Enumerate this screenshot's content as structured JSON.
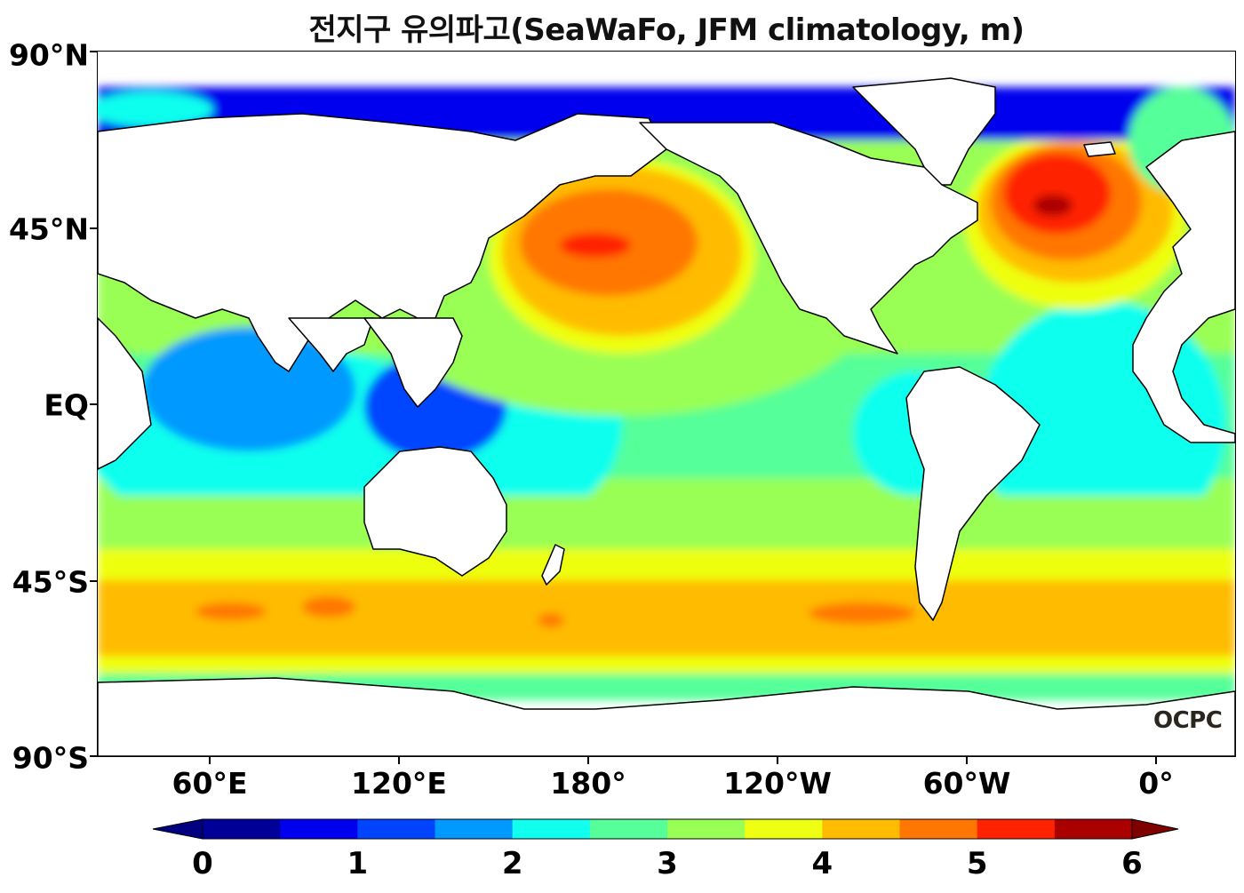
{
  "title": "전지구 유의파고(SeaWaFo, JFM climatology, m)",
  "watermark": "OCPC",
  "lat_labels": [
    "90°N",
    "45°N",
    "EQ",
    "45°S",
    "90°S"
  ],
  "lon_labels": [
    "60°E",
    "120°E",
    "180°",
    "120°W",
    "60°W",
    "0°"
  ],
  "colorbar": {
    "tick_labels": [
      "0",
      "1",
      "2",
      "3",
      "4",
      "5",
      "6"
    ],
    "levels": [
      0,
      0.5,
      1,
      1.5,
      2,
      2.5,
      3,
      3.5,
      4,
      4.5,
      5,
      5.5,
      6
    ],
    "colors": [
      "#000099",
      "#0000ee",
      "#0044ff",
      "#0099ff",
      "#11ffee",
      "#55ff99",
      "#99ff55",
      "#eeff11",
      "#ffbb00",
      "#ff7700",
      "#ff2200",
      "#aa0000"
    ],
    "under_color": "#000080",
    "over_color": "#800000",
    "extend": "both"
  },
  "map_data": {
    "variable": "significant wave height",
    "units": "m",
    "projection": "equirectangular",
    "lon_range": [
      25,
      385
    ],
    "lat_range": [
      -90,
      90
    ],
    "land_color": "#ffffff",
    "coastline_color": "#000000"
  }
}
